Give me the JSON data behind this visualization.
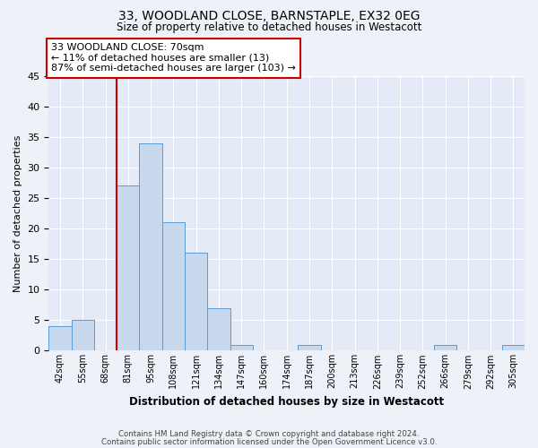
{
  "title": "33, WOODLAND CLOSE, BARNSTAPLE, EX32 0EG",
  "subtitle": "Size of property relative to detached houses in Westacott",
  "xlabel": "Distribution of detached houses by size in Westacott",
  "ylabel": "Number of detached properties",
  "bin_labels": [
    "42sqm",
    "55sqm",
    "68sqm",
    "81sqm",
    "95sqm",
    "108sqm",
    "121sqm",
    "134sqm",
    "147sqm",
    "160sqm",
    "174sqm",
    "187sqm",
    "200sqm",
    "213sqm",
    "226sqm",
    "239sqm",
    "252sqm",
    "266sqm",
    "279sqm",
    "292sqm",
    "305sqm"
  ],
  "bar_values": [
    4,
    5,
    0,
    27,
    34,
    21,
    16,
    7,
    1,
    0,
    0,
    1,
    0,
    0,
    0,
    0,
    0,
    1,
    0,
    0,
    1
  ],
  "bar_color": "#c8d9ed",
  "bar_edge_color": "#5b9bd5",
  "ylim": [
    0,
    45
  ],
  "yticks": [
    0,
    5,
    10,
    15,
    20,
    25,
    30,
    35,
    40,
    45
  ],
  "property_line_color": "#cc0000",
  "annotation_title": "33 WOODLAND CLOSE: 70sqm",
  "annotation_line1": "← 11% of detached houses are smaller (13)",
  "annotation_line2": "87% of semi-detached houses are larger (103) →",
  "annotation_box_color": "#cc0000",
  "footer_line1": "Contains HM Land Registry data © Crown copyright and database right 2024.",
  "footer_line2": "Contains public sector information licensed under the Open Government Licence v3.0.",
  "bg_color": "#eef2f8",
  "plot_bg_color": "#e4eaf6"
}
